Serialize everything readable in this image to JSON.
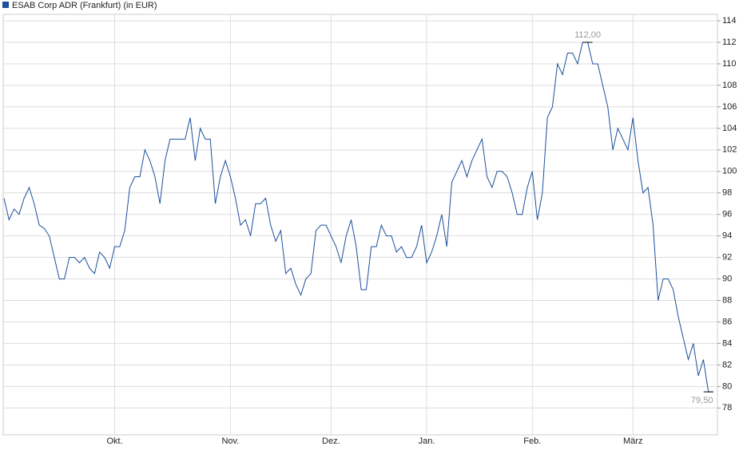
{
  "chart_data": {
    "type": "line",
    "series": [
      {
        "name": "ESAB Corp ADR (Frankfurt) (in EUR)",
        "color": "#1c4f9c",
        "values": [
          97.5,
          95.5,
          96.5,
          96,
          97.5,
          98.5,
          97,
          95,
          94.7,
          94,
          92,
          90,
          90,
          92,
          92,
          91.5,
          92,
          91,
          90.5,
          92.5,
          92,
          91,
          93,
          93,
          94.5,
          98.5,
          99.5,
          99.5,
          102,
          101,
          99.5,
          97,
          101,
          103,
          103,
          103,
          103,
          105,
          101,
          104,
          103,
          103,
          97,
          99.5,
          101,
          99.5,
          97.5,
          95,
          95.5,
          94,
          97,
          97,
          97.5,
          95,
          93.5,
          94.5,
          90.5,
          91,
          89.5,
          88.5,
          90,
          90.5,
          94.5,
          95,
          95,
          94,
          93,
          91.5,
          94,
          95.5,
          93,
          89,
          89,
          93,
          93,
          95,
          94,
          94,
          92.5,
          93,
          92,
          92,
          93,
          95,
          91.5,
          92.5,
          94,
          96,
          93,
          99,
          100,
          101,
          99.5,
          101,
          102,
          103,
          99.5,
          98.5,
          100,
          100,
          99.5,
          98,
          96,
          96,
          98.5,
          100,
          95.5,
          98,
          105,
          106,
          110,
          109,
          111,
          111,
          110,
          112,
          112,
          110,
          110,
          108,
          106,
          102,
          104,
          103,
          102,
          105,
          101,
          98,
          98.5,
          95,
          88,
          90,
          90,
          89,
          86.5,
          84.5,
          82.5,
          84,
          81,
          82.5,
          79.5,
          79.5
        ],
        "value_labels": [
          null,
          null,
          null,
          null,
          null,
          null,
          null,
          null,
          null,
          null,
          null,
          null,
          null,
          null,
          null,
          null,
          null,
          null,
          null,
          null,
          null,
          null,
          null,
          null,
          null,
          null,
          null,
          null,
          null,
          null,
          null,
          null,
          null,
          null,
          null,
          null,
          null,
          null,
          null,
          null,
          null,
          null,
          null,
          null,
          null,
          null,
          null,
          null,
          null,
          null,
          null,
          null,
          null,
          null,
          null,
          null,
          null,
          null,
          null,
          null,
          null,
          null,
          null,
          null,
          null,
          null,
          null,
          null,
          null,
          null,
          null,
          null,
          null,
          null,
          null,
          null,
          null,
          null,
          null,
          null,
          null,
          null,
          null,
          null,
          null,
          null,
          null,
          null,
          null,
          null,
          null,
          null,
          null,
          null,
          null,
          null,
          null,
          null,
          null,
          null,
          null,
          null,
          null,
          null,
          null,
          null,
          null,
          null,
          null,
          null,
          null,
          null,
          null,
          null,
          null,
          null,
          "112,00",
          null,
          null,
          null,
          null,
          null,
          null,
          null,
          null,
          null,
          null,
          null,
          null,
          null,
          null,
          null,
          null,
          null,
          null,
          null,
          null,
          null,
          null,
          null,
          "79,50",
          null
        ]
      }
    ],
    "categories": [
      null,
      null,
      null,
      null,
      null,
      null,
      null,
      null,
      null,
      null,
      null,
      null,
      null,
      null,
      null,
      null,
      null,
      null,
      null,
      null,
      null,
      null,
      "Okt.",
      null,
      null,
      null,
      null,
      null,
      null,
      null,
      null,
      null,
      null,
      null,
      null,
      null,
      null,
      null,
      null,
      null,
      null,
      null,
      null,
      null,
      null,
      "Nov.",
      null,
      null,
      null,
      null,
      null,
      null,
      null,
      null,
      null,
      null,
      null,
      null,
      null,
      null,
      null,
      null,
      null,
      null,
      null,
      "Dez.",
      null,
      null,
      null,
      null,
      null,
      null,
      null,
      null,
      null,
      null,
      null,
      null,
      null,
      null,
      null,
      null,
      null,
      null,
      "Jan.",
      null,
      null,
      null,
      null,
      null,
      null,
      null,
      null,
      null,
      null,
      null,
      null,
      null,
      null,
      null,
      null,
      null,
      null,
      null,
      null,
      "Feb.",
      null,
      null,
      null,
      null,
      null,
      null,
      null,
      null,
      null,
      null,
      null,
      null,
      null,
      null,
      null,
      null,
      null,
      null,
      null,
      "März",
      null,
      null,
      null,
      null,
      null,
      null,
      null,
      null,
      null,
      null,
      null,
      null,
      null,
      null,
      null,
      null
    ],
    "ylim": [
      75.5,
      114.6
    ],
    "yticks": [
      78,
      80,
      82,
      84,
      86,
      88,
      90,
      92,
      94,
      96,
      98,
      100,
      102,
      104,
      106,
      108,
      110,
      112,
      114
    ],
    "grid": true
  }
}
